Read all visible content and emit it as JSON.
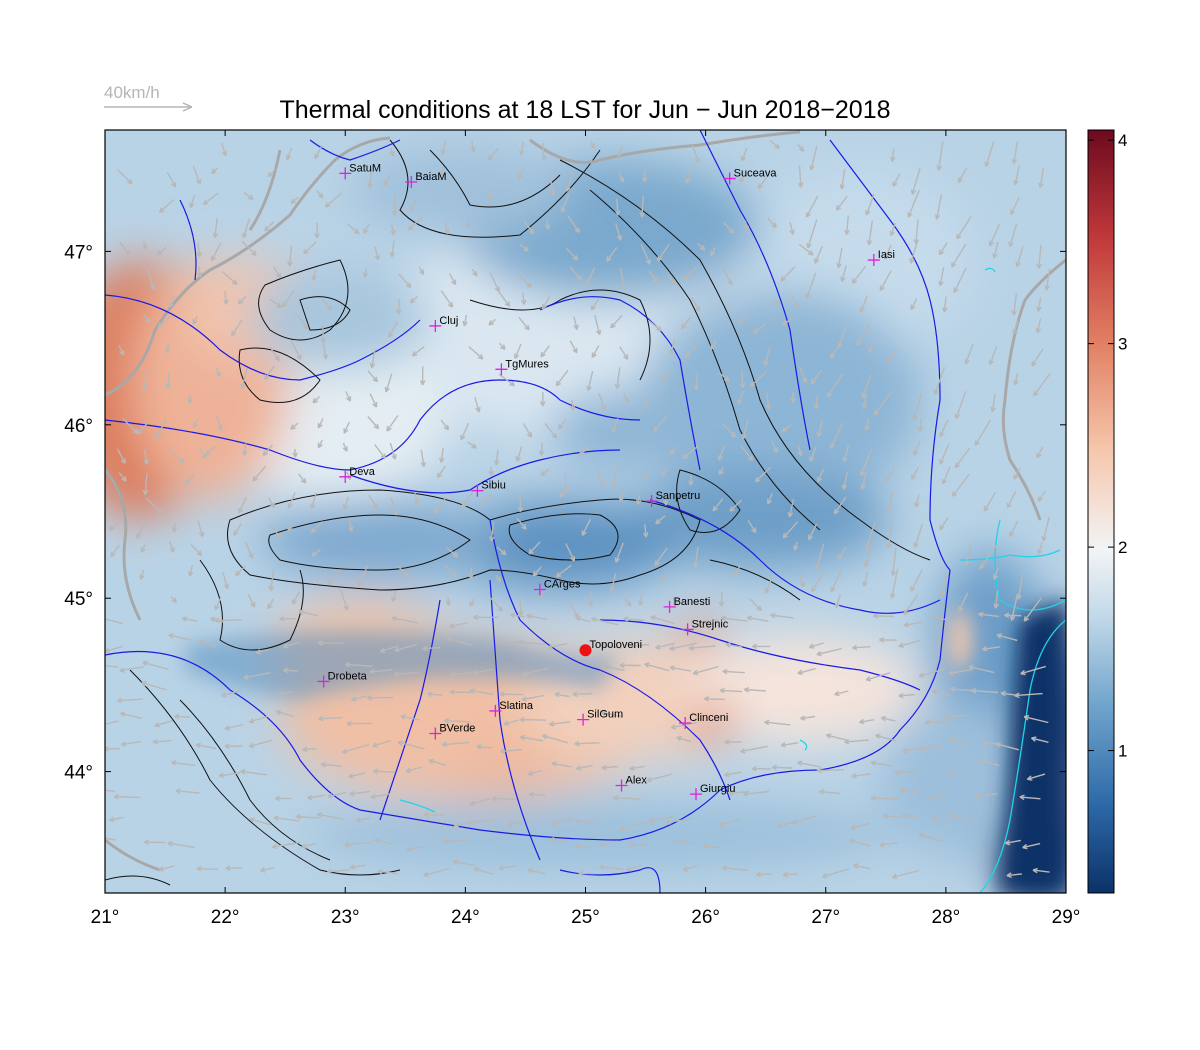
{
  "title": "Thermal conditions at 18 LST for Jun − Jun  2018−2018",
  "wind_scale": {
    "label": "40km/h",
    "color": "#b5b5b5"
  },
  "map": {
    "lon_range": [
      21,
      29
    ],
    "lat_range": [
      43.3,
      47.7
    ],
    "lon_ticks": [
      "21°",
      "22°",
      "23°",
      "24°",
      "25°",
      "26°",
      "27°",
      "28°",
      "29°"
    ],
    "lat_ticks": [
      "44°",
      "45°",
      "46°",
      "47°"
    ],
    "river_color": "#1a1ae6",
    "coast_color": "#22d3e6",
    "marker_color": "#e020e0",
    "highlight_color": "#ee1111",
    "cities": [
      {
        "name": "SatuM",
        "lon": 23.0,
        "lat": 47.45
      },
      {
        "name": "BaiaM",
        "lon": 23.55,
        "lat": 47.4
      },
      {
        "name": "Suceava",
        "lon": 26.2,
        "lat": 47.42
      },
      {
        "name": "Iasi",
        "lon": 27.4,
        "lat": 46.95
      },
      {
        "name": "Cluj",
        "lon": 23.75,
        "lat": 46.57
      },
      {
        "name": "TgMures",
        "lon": 24.3,
        "lat": 46.32
      },
      {
        "name": "Deva",
        "lon": 23.0,
        "lat": 45.7
      },
      {
        "name": "Sibiu",
        "lon": 24.1,
        "lat": 45.62
      },
      {
        "name": "Sanpetru",
        "lon": 25.55,
        "lat": 45.56
      },
      {
        "name": "CArges",
        "lon": 24.62,
        "lat": 45.05
      },
      {
        "name": "Banesti",
        "lon": 25.7,
        "lat": 44.95
      },
      {
        "name": "Strejnic",
        "lon": 25.85,
        "lat": 44.82
      },
      {
        "name": "Topoloveni",
        "lon": 25.0,
        "lat": 44.7,
        "highlight": true
      },
      {
        "name": "Drobeta",
        "lon": 22.82,
        "lat": 44.52
      },
      {
        "name": "Slatina",
        "lon": 24.25,
        "lat": 44.35
      },
      {
        "name": "SilGum",
        "lon": 24.98,
        "lat": 44.3
      },
      {
        "name": "Clinceni",
        "lon": 25.83,
        "lat": 44.28
      },
      {
        "name": "BVerde",
        "lon": 23.75,
        "lat": 44.22
      },
      {
        "name": "Alex",
        "lon": 25.3,
        "lat": 43.92
      },
      {
        "name": "Giurgiu",
        "lon": 25.92,
        "lat": 43.87
      }
    ]
  },
  "colorbar": {
    "range": [
      0.3,
      4.05
    ],
    "ticks": [
      "1",
      "2",
      "3",
      "4"
    ],
    "colors": [
      "#0b3268",
      "#2e6ba9",
      "#73a6cd",
      "#c0d8e8",
      "#f2f4f6",
      "#f6c7ac",
      "#e18064",
      "#c0383a",
      "#6d0a1f"
    ]
  }
}
